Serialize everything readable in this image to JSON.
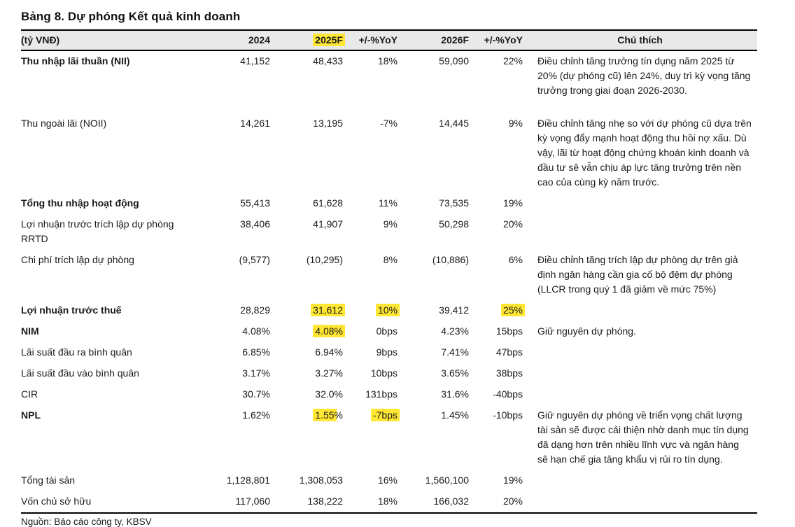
{
  "title": "Bảng 8. Dự phóng Kết quả kinh doanh",
  "colors": {
    "highlight_yellow": "#ffe733",
    "header_bg": "#e9e9e9"
  },
  "header": {
    "c0": "(tỷ VNĐ)",
    "c1": "2024",
    "c2": "2025F",
    "c3": "+/-%YoY",
    "c4": "2026F",
    "c5": "+/-%YoY",
    "c6": "Chú thích"
  },
  "rows": [
    {
      "label": "Thu nhập lãi thuần (NII)",
      "v2024": "41,152",
      "v2025": "48,433",
      "yoy2025": "18%",
      "v2026": "59,090",
      "yoy2026": "22%",
      "note": "Điều chỉnh tăng trưởng tín dụng năm 2025 từ 20% (dự phóng cũ) lên 24%, duy trì kỳ vọng tăng trưởng trong giai đoạn 2026-2030."
    },
    {
      "label": "Thu ngoài lãi (NOII)",
      "v2024": "14,261",
      "v2025": "13,195",
      "yoy2025": "-7%",
      "v2026": "14,445",
      "yoy2026": "9%",
      "note": "Điều chỉnh tăng nhẹ so với dự phóng cũ dựa trên kỳ vọng đẩy mạnh hoạt động thu hồi nợ xấu. Dù vậy, lãi từ hoạt động chứng khoán kinh doanh và đầu tư sẽ vẫn chịu áp lực tăng trưởng trên nền cao của cùng kỳ năm trước."
    },
    {
      "label": "Tổng thu nhập hoạt động",
      "v2024": "55,413",
      "v2025": "61,628",
      "yoy2025": "11%",
      "v2026": "73,535",
      "yoy2026": "19%",
      "note": ""
    },
    {
      "label": "Lợi nhuận trước trích lập dự phòng RRTD",
      "v2024": "38,406",
      "v2025": "41,907",
      "yoy2025": "9%",
      "v2026": "50,298",
      "yoy2026": "20%",
      "note": ""
    },
    {
      "label": "Chi phí trích lập dự phòng",
      "v2024": "(9,577)",
      "v2025": "(10,295)",
      "yoy2025": "8%",
      "v2026": "(10,886)",
      "yoy2026": "6%",
      "note": "Điều chỉnh tăng trích lập dự phòng dự trên giả định ngân hàng cần gia cố bộ đệm dự phòng (LLCR trong quý 1 đã giảm về mức 75%)"
    },
    {
      "label": "Lợi nhuận trước thuế",
      "v2024": "28,829",
      "v2025": "31,612",
      "yoy2025": "10%",
      "v2026": "39,412",
      "yoy2026": "25%",
      "note": ""
    },
    {
      "label": "NIM",
      "v2024": "4.08%",
      "v2025": "4.08%",
      "yoy2025": "0bps",
      "v2026": "4.23%",
      "yoy2026": "15bps",
      "note": "Giữ nguyên dự phóng."
    },
    {
      "label": "Lãi suất đầu ra bình quân",
      "v2024": "6.85%",
      "v2025": "6.94%",
      "yoy2025": "9bps",
      "v2026": "7.41%",
      "yoy2026": "47bps",
      "note": ""
    },
    {
      "label": "Lãi suất đầu vào bình quân",
      "v2024": "3.17%",
      "v2025": "3.27%",
      "yoy2025": "10bps",
      "v2026": "3.65%",
      "yoy2026": "38bps",
      "note": ""
    },
    {
      "label": "CIR",
      "v2024": "30.7%",
      "v2025": "32.0%",
      "yoy2025": "131bps",
      "v2026": "31.6%",
      "yoy2026": "-40bps",
      "note": ""
    },
    {
      "label": "NPL",
      "v2024": "1.62%",
      "v2025": "1.55",
      "v2025_suffix": "%",
      "yoy2025": "-7bps",
      "v2026": "1.45%",
      "yoy2026": "-10bps",
      "note": "Giữ nguyên dự phóng về triển vọng chất lượng tài sản sẽ được cải thiện nhờ danh mục tín dụng đã dạng hơn trên nhiều lĩnh vực và ngân hàng sẽ hạn chế gia tăng khẩu vị rủi ro tín dụng."
    },
    {
      "label": "Tổng tài sản",
      "v2024": "1,128,801",
      "v2025": "1,308,053",
      "yoy2025": "16%",
      "v2026": "1,560,100",
      "yoy2026": "19%",
      "note": ""
    },
    {
      "label": "Vốn chủ sở hữu",
      "v2024": "117,060",
      "v2025": "138,222",
      "yoy2025": "18%",
      "v2026": "166,032",
      "yoy2026": "20%",
      "note": ""
    }
  ],
  "footer": {
    "source": "Nguồn: Báo cáo công ty, KBSV"
  }
}
